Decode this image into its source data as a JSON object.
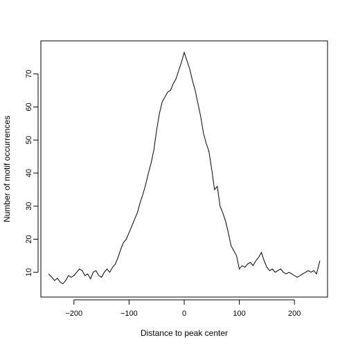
{
  "chart_data": {
    "type": "line",
    "title": "",
    "xlabel": "Distance to peak center",
    "ylabel": "Number of motif occurrences",
    "xlim": [
      -260,
      260
    ],
    "ylim": [
      2.5,
      80
    ],
    "x_ticks": [
      -200,
      -100,
      0,
      100,
      200
    ],
    "x_tick_labels": [
      "−200",
      "−100",
      "0",
      "100",
      "200"
    ],
    "y_ticks": [
      10,
      20,
      30,
      40,
      50,
      60,
      70
    ],
    "y_tick_labels": [
      "10",
      "20",
      "30",
      "40",
      "50",
      "60",
      "70"
    ],
    "grid": false,
    "line_color": "#000000",
    "series": [
      {
        "x": [
          -246,
          -240,
          -235,
          -230,
          -225,
          -220,
          -215,
          -210,
          -205,
          -200,
          -195,
          -190,
          -185,
          -180,
          -175,
          -170,
          -165,
          -160,
          -155,
          -150,
          -145,
          -140,
          -135,
          -130,
          -125,
          -120,
          -115,
          -110,
          -105,
          -100,
          -95,
          -90,
          -85,
          -80,
          -75,
          -70,
          -65,
          -60,
          -55,
          -50,
          -45,
          -40,
          -35,
          -30,
          -25,
          -20,
          -15,
          -10,
          -5,
          0,
          3,
          5,
          10,
          15,
          20,
          25,
          30,
          35,
          40,
          45,
          50,
          55,
          60,
          65,
          70,
          75,
          80,
          85,
          90,
          95,
          100,
          105,
          110,
          115,
          120,
          125,
          130,
          135,
          140,
          145,
          150,
          155,
          160,
          165,
          170,
          175,
          180,
          185,
          190,
          195,
          200,
          205,
          210,
          215,
          220,
          225,
          230,
          235,
          240,
          246
        ],
        "values": [
          9.5,
          8.5,
          7.5,
          8.2,
          7.0,
          6.5,
          7.5,
          9.0,
          8.5,
          9.0,
          10.0,
          11.0,
          10.5,
          9.0,
          9.5,
          8.0,
          10.0,
          10.5,
          9.0,
          8.5,
          10.0,
          11.0,
          10.0,
          11.5,
          12.5,
          14.5,
          17.0,
          19.0,
          20.0,
          22.0,
          24.0,
          26.0,
          28.0,
          31.0,
          33.5,
          36.5,
          40.0,
          43.0,
          47.0,
          53.0,
          58.0,
          61.5,
          63.0,
          64.5,
          65.0,
          67.0,
          68.5,
          71.0,
          73.5,
          76.5,
          75.0,
          74.0,
          71.5,
          68.0,
          65.0,
          61.0,
          57.0,
          52.0,
          49.0,
          46.5,
          41.0,
          35.0,
          36.0,
          30.0,
          28.0,
          25.5,
          22.0,
          18.0,
          16.5,
          15.0,
          11.0,
          12.0,
          11.5,
          12.5,
          13.0,
          12.0,
          13.5,
          14.5,
          16.0,
          13.5,
          11.5,
          10.5,
          11.0,
          10.0,
          10.5,
          11.0,
          10.0,
          9.5,
          10.0,
          9.5,
          9.0,
          8.5,
          9.0,
          9.5,
          10.0,
          10.5,
          10.0,
          10.5,
          9.5,
          13.5
        ]
      }
    ]
  }
}
